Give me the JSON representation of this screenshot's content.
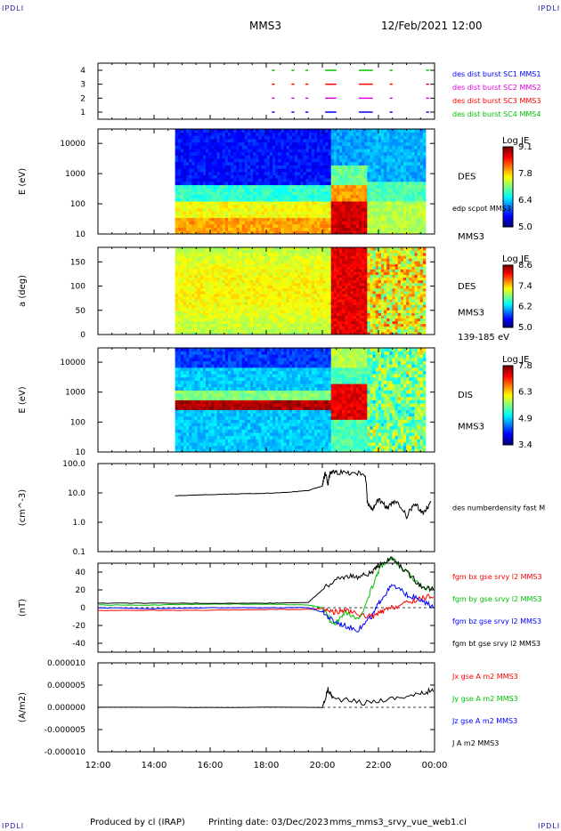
{
  "corners": {
    "tl": "IPDLI",
    "tr": "IPDLI",
    "bl": "IPDLI",
    "br": "IPDLI"
  },
  "header": {
    "spacecraft": "MMS3",
    "date": "12/Feb/2021 12:00"
  },
  "footer": {
    "credit": "Produced by cl (IRAP)",
    "printing": "Printing date: 03/Dec/2023",
    "file": "mms_mms3_srvy_vue_web1.cl"
  },
  "colors": {
    "jet": [
      "#000080",
      "#0000ff",
      "#0080ff",
      "#00ffff",
      "#80ff80",
      "#ffff00",
      "#ff8000",
      "#ff0000",
      "#800000"
    ],
    "red": "#ff0000",
    "green": "#00c000",
    "blue": "#0000ff",
    "magenta": "#e000e0",
    "black": "#000000"
  },
  "chart_data": [
    {
      "type": "table",
      "id": "burst",
      "ylabel": "",
      "yticks": [
        "1",
        "2",
        "3",
        "4"
      ],
      "x": [
        "12:00",
        "14:00",
        "16:00",
        "18:00",
        "20:00",
        "22:00",
        "00:00"
      ],
      "legend": [
        {
          "text": "des dist burst SC1 MMS1",
          "color": "blue"
        },
        {
          "text": "des dist burst SC2 MMS2",
          "color": "magenta"
        },
        {
          "text": "des dist burst SC3 MMS3",
          "color": "red"
        },
        {
          "text": "des dist burst SC4 MMS4",
          "color": "green"
        }
      ],
      "burst_intervals_hours": [
        [
          18.2,
          18.3
        ],
        [
          18.9,
          19.0
        ],
        [
          19.4,
          19.5
        ],
        [
          20.1,
          20.5
        ],
        [
          21.3,
          21.8
        ],
        [
          22.4,
          22.5
        ],
        [
          23.7,
          23.8
        ]
      ]
    },
    {
      "type": "heatmap",
      "id": "des-energy",
      "ylabel": "E (eV)",
      "yscale": "log",
      "ylim": [
        10,
        30000
      ],
      "yticks": [
        "10",
        "100",
        "1000",
        "10000"
      ],
      "xlim_hours": [
        12,
        24
      ],
      "data_start_hour": 14.75,
      "side_labels": [
        "DES",
        "edp scpot MMS3",
        "MMS3"
      ],
      "colorbar": {
        "title": "Log JE",
        "ticks": [
          "9.1",
          "7.8",
          "6.4",
          "5.0"
        ],
        "range": [
          5.0,
          9.1
        ]
      }
    },
    {
      "type": "heatmap",
      "id": "des-pitch",
      "ylabel": "a (deg)",
      "ylim": [
        0,
        180
      ],
      "yticks": [
        "0",
        "50",
        "100",
        "150"
      ],
      "xlim_hours": [
        12,
        24
      ],
      "data_start_hour": 14.75,
      "side_labels": [
        "DES",
        "MMS3",
        "139-185 eV"
      ],
      "colorbar": {
        "title": "Log JE",
        "ticks": [
          "8.6",
          "7.4",
          "6.2",
          "5.0"
        ],
        "range": [
          5.0,
          8.6
        ]
      }
    },
    {
      "type": "heatmap",
      "id": "dis-energy",
      "ylabel": "E (eV)",
      "yscale": "log",
      "ylim": [
        10,
        30000
      ],
      "yticks": [
        "10",
        "100",
        "1000",
        "10000"
      ],
      "xlim_hours": [
        12,
        24
      ],
      "data_start_hour": 14.75,
      "side_labels": [
        "DIS",
        "MMS3"
      ],
      "colorbar": {
        "title": "Log JE",
        "ticks": [
          "7.8",
          "6.3",
          "4.9",
          "3.4"
        ],
        "range": [
          3.4,
          7.8
        ]
      }
    },
    {
      "type": "line",
      "id": "density",
      "ylabel": "(cm^-3)",
      "yscale": "log",
      "ylim": [
        0.1,
        100
      ],
      "yticks": [
        "0.1",
        "1.0",
        "10.0",
        "100.0"
      ],
      "legend": [
        {
          "text": "des numberdensity fast M",
          "color": "black"
        }
      ],
      "series": [
        {
          "color": "black",
          "x": [
            14.75,
            15.5,
            16.5,
            17.5,
            18.5,
            19.5,
            20.0,
            20.1,
            20.2,
            20.3,
            20.5,
            21.0,
            21.5,
            21.6,
            21.8,
            22.0,
            22.3,
            22.6,
            23.0,
            23.3,
            23.6,
            23.9
          ],
          "y": [
            8,
            8.5,
            9,
            9.5,
            10,
            12,
            17,
            45,
            20,
            55,
            52,
            50,
            48,
            5,
            2.5,
            6,
            3,
            5,
            1.5,
            4,
            2,
            5
          ]
        }
      ]
    },
    {
      "type": "line",
      "id": "bfield",
      "ylabel": "(nT)",
      "ylim": [
        -50,
        50
      ],
      "yticks": [
        "-40",
        "-20",
        "0",
        "20",
        "40"
      ],
      "legend": [
        {
          "text": "fgm bx gse srvy l2 MMS3",
          "color": "red"
        },
        {
          "text": "fgm by gse srvy l2 MMS3",
          "color": "green"
        },
        {
          "text": "fgm bz gse srvy l2 MMS3",
          "color": "blue"
        },
        {
          "text": "fgm bt gse srvy l2 MMS3",
          "color": "black"
        }
      ],
      "series": [
        {
          "color": "red",
          "x": [
            12,
            14,
            16,
            18,
            19.5,
            20.0,
            20.4,
            20.8,
            21.3,
            21.8,
            22.1,
            22.5,
            23,
            23.5,
            24
          ],
          "y": [
            -3,
            -3,
            -3,
            -2,
            -2,
            -1,
            -5,
            -3,
            -8,
            -10,
            -5,
            0,
            5,
            10,
            14
          ]
        },
        {
          "color": "green",
          "x": [
            12,
            14,
            16,
            18,
            19.5,
            20.0,
            20.4,
            20.8,
            21.3,
            21.8,
            22.1,
            22.5,
            23,
            23.5,
            24
          ],
          "y": [
            3,
            3,
            4,
            4,
            3,
            0,
            -20,
            -5,
            -15,
            25,
            48,
            55,
            40,
            25,
            18
          ]
        },
        {
          "color": "blue",
          "x": [
            12,
            14,
            16,
            18,
            19.5,
            20.0,
            20.4,
            20.8,
            21.3,
            21.8,
            22.1,
            22.5,
            23,
            23.5,
            24
          ],
          "y": [
            0,
            -1,
            0,
            0,
            0,
            -5,
            -15,
            -20,
            -25,
            -8,
            10,
            25,
            15,
            8,
            0
          ]
        },
        {
          "color": "black",
          "x": [
            12,
            14,
            16,
            18,
            19.5,
            20.0,
            20.4,
            20.8,
            21.3,
            21.8,
            22.1,
            22.5,
            23,
            23.5,
            24
          ],
          "y": [
            5,
            5,
            5,
            5,
            6,
            20,
            30,
            35,
            35,
            40,
            50,
            55,
            40,
            25,
            20
          ]
        }
      ]
    },
    {
      "type": "line",
      "id": "current",
      "ylabel": "(A/m2)",
      "ylim": [
        -1e-05,
        1e-05
      ],
      "yticks": [
        "-0.000010",
        "-0.000005",
        "0.000000",
        "0.000005",
        "0.000010"
      ],
      "xticks": [
        "12:00",
        "14:00",
        "16:00",
        "18:00",
        "20:00",
        "22:00",
        "00:00"
      ],
      "legend": [
        {
          "text": "Jx gse A m2 MMS3",
          "color": "red"
        },
        {
          "text": "Jy gse A m2 MMS3",
          "color": "green"
        },
        {
          "text": "Jz gse A m2 MMS3",
          "color": "blue"
        },
        {
          "text": "J A m2 MMS3",
          "color": "black"
        }
      ],
      "series": [
        {
          "color": "black",
          "x": [
            12,
            20,
            20.2,
            20.4,
            21.5,
            22.5,
            23.5,
            24
          ],
          "y": [
            0,
            0,
            4e-06,
            2e-06,
            1e-06,
            2e-06,
            3e-06,
            4e-06
          ]
        }
      ]
    }
  ]
}
